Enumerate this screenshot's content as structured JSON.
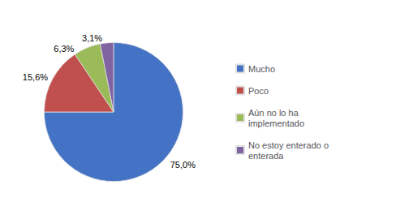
{
  "chart_data": {
    "type": "pie",
    "categories": [
      "Mucho",
      "Poco",
      "Aún no lo ha\nimplementado",
      "No estoy enterado o\nenterada"
    ],
    "values": [
      75.0,
      15.6,
      6.3,
      3.1
    ],
    "value_labels": [
      "75,0%",
      "15,6%",
      "6,3%",
      "3,1%"
    ],
    "colors": [
      "#4472C4",
      "#C0504D",
      "#9BBB59",
      "#8064A2"
    ],
    "legend": "right"
  }
}
